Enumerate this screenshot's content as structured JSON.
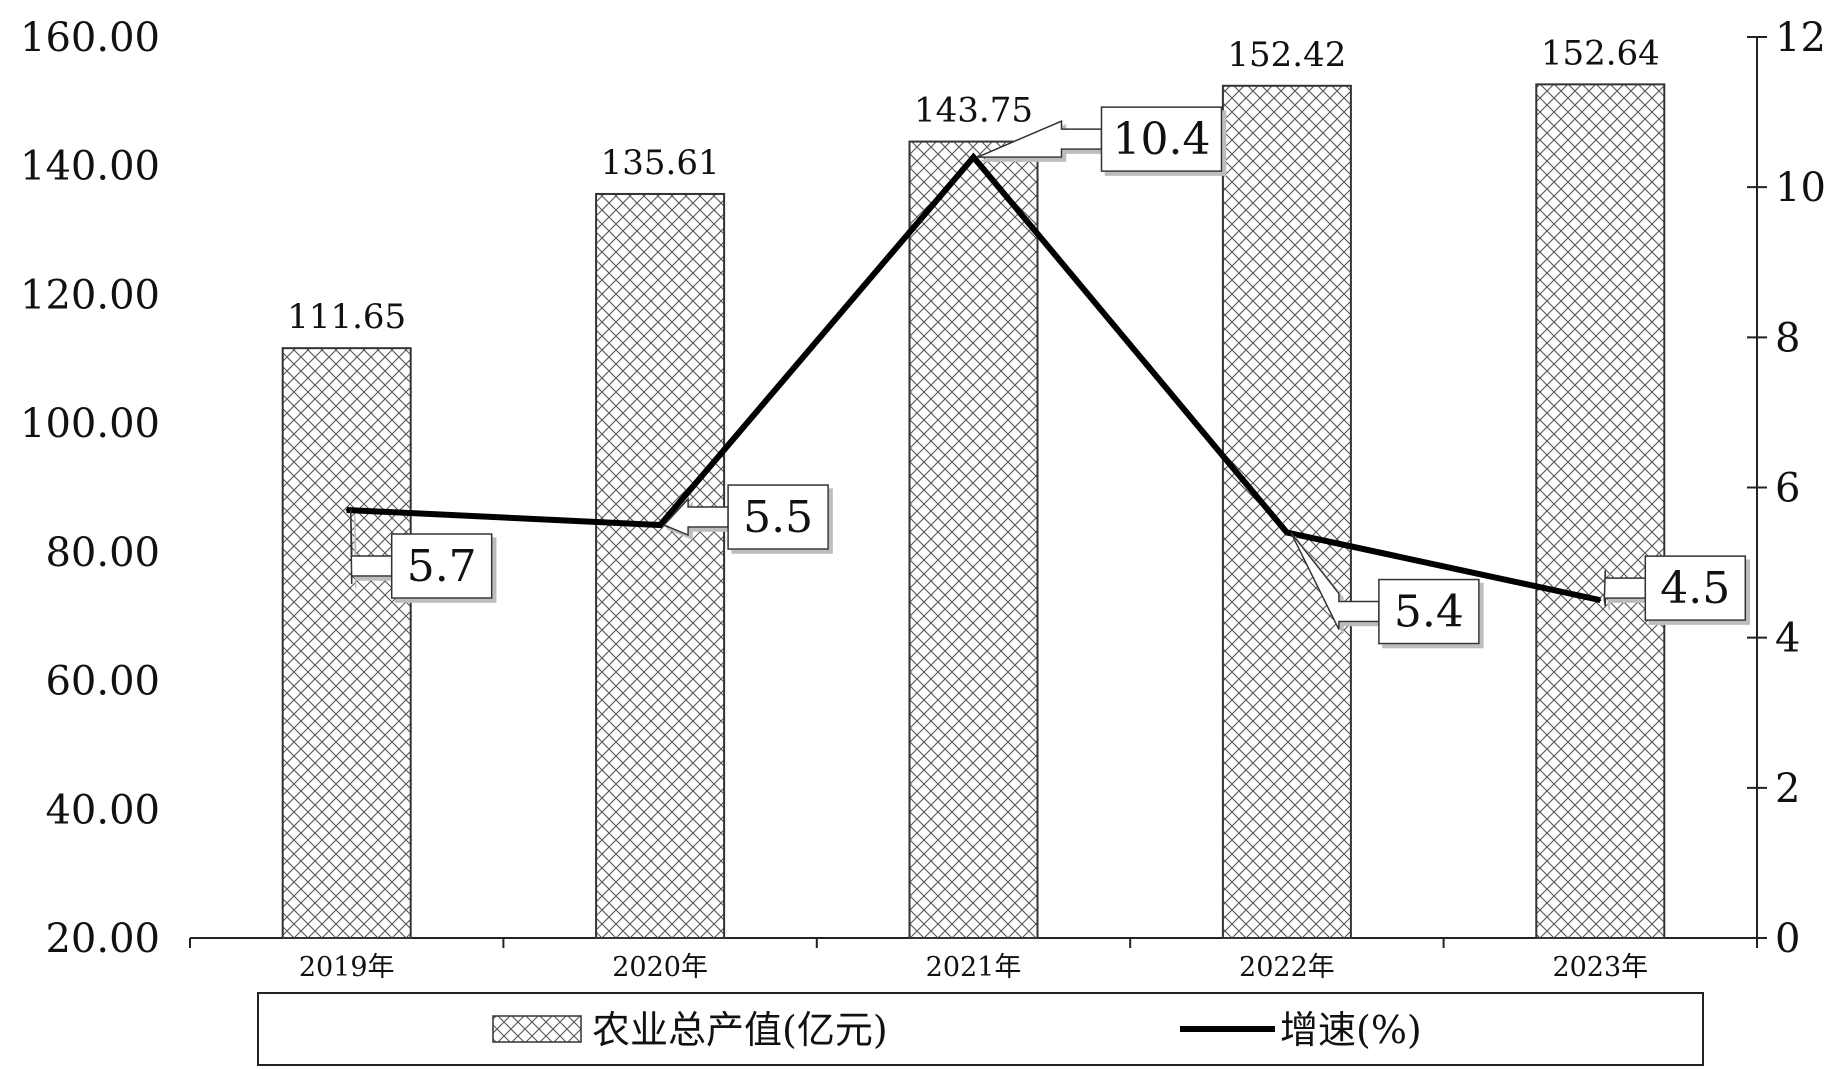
{
  "chart_data": {
    "type": "bar",
    "categories": [
      "2019年",
      "2020年",
      "2021年",
      "2022年",
      "2023年"
    ],
    "series": [
      {
        "name": "农业总产值(亿元)",
        "type": "bar",
        "axis": "left",
        "values": [
          111.65,
          135.61,
          143.75,
          152.42,
          152.64
        ],
        "labels": [
          "111.65",
          "135.61",
          "143.75",
          "152.42",
          "152.64"
        ],
        "color": "#333333"
      },
      {
        "name": "增速(%)",
        "type": "line",
        "axis": "right",
        "values": [
          5.7,
          5.5,
          10.4,
          5.4,
          4.5
        ],
        "labels": [
          "5.7",
          "5.5",
          "10.4",
          "5.4",
          "4.5"
        ],
        "color": "#000000"
      }
    ],
    "left_axis": {
      "ylim": [
        20,
        160
      ],
      "ticks": [
        20,
        40,
        60,
        80,
        100,
        120,
        140,
        160
      ],
      "tick_labels": [
        "20.00",
        "40.00",
        "60.00",
        "80.00",
        "100.00",
        "120.00",
        "140.00",
        "160.00"
      ]
    },
    "right_axis": {
      "ylim": [
        0,
        12
      ],
      "ticks": [
        0,
        2,
        4,
        6,
        8,
        10,
        12
      ],
      "tick_labels": [
        "0",
        "2",
        "4",
        "6",
        "8",
        "10",
        "12"
      ]
    },
    "title": "",
    "xlabel": "",
    "ylabel": "",
    "grid": false,
    "legend_position": "bottom"
  }
}
